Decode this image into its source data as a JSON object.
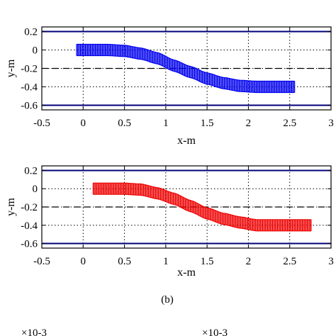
{
  "caption": "(b)",
  "footer_exponents": [
    "×10-3",
    "×10-3"
  ],
  "chart_data": [
    {
      "type": "line",
      "xlabel": "x-m",
      "ylabel": "y-m",
      "xlim": [
        -0.5,
        3
      ],
      "ylim": [
        -0.65,
        0.25
      ],
      "xticks": [
        "-0.5",
        "0",
        "0.5",
        "1",
        "1.5",
        "2",
        "2.5",
        "3"
      ],
      "yticks": [
        "0.2",
        "0",
        "-0.2",
        "-0.4",
        "-0.6"
      ],
      "grid": true,
      "color": "#0000ee",
      "boundaries": [
        0.2,
        -0.6
      ],
      "centerline": -0.2,
      "series": [
        {
          "x": [
            -0.08,
            0.3,
            0.5,
            0.7,
            0.9,
            1.1,
            1.3,
            1.5,
            1.7,
            1.9,
            2.1,
            2.3,
            2.57
          ],
          "y": [
            0.0,
            0.0,
            -0.01,
            -0.04,
            -0.09,
            -0.17,
            -0.24,
            -0.31,
            -0.36,
            -0.39,
            -0.4,
            -0.4,
            -0.4
          ]
        }
      ]
    },
    {
      "type": "line",
      "xlabel": "x-m",
      "ylabel": "y-m",
      "xlim": [
        -0.5,
        3
      ],
      "ylim": [
        -0.65,
        0.25
      ],
      "xticks": [
        "-0.5",
        "0",
        "0.5",
        "1",
        "1.5",
        "2",
        "2.5",
        "3"
      ],
      "yticks": [
        "0.2",
        "0",
        "-0.2",
        "-0.4",
        "-0.6"
      ],
      "grid": true,
      "color": "#ee0000",
      "boundaries": [
        0.2,
        -0.6
      ],
      "centerline": -0.2,
      "series": [
        {
          "x": [
            0.12,
            0.5,
            0.7,
            0.9,
            1.1,
            1.3,
            1.5,
            1.7,
            1.9,
            2.1,
            2.3,
            2.5,
            2.77
          ],
          "y": [
            0.0,
            0.0,
            -0.01,
            -0.05,
            -0.11,
            -0.19,
            -0.27,
            -0.33,
            -0.37,
            -0.4,
            -0.4,
            -0.4,
            -0.4
          ]
        }
      ]
    }
  ]
}
